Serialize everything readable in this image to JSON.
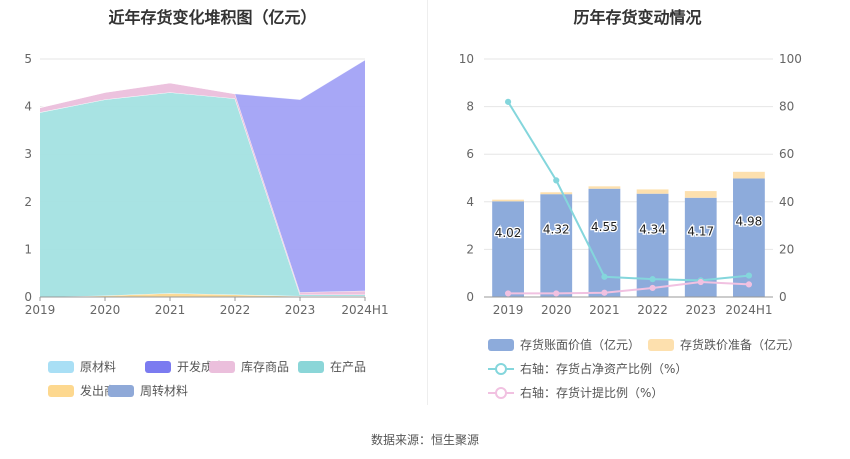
{
  "source": "数据来源：恒生聚源",
  "chart_data": [
    {
      "type": "area",
      "stacked": true,
      "title": "近年存货变化堆积图（亿元）",
      "categories": [
        "2019",
        "2020",
        "2021",
        "2022",
        "2023",
        "2024H1"
      ],
      "yticks": [
        "0",
        "1",
        "2",
        "3",
        "4",
        "5"
      ],
      "ylim": [
        0,
        5
      ],
      "grid": true,
      "legend_position": "bottom",
      "series": [
        {
          "name": "发出商品",
          "color": "#fdd88f",
          "values": [
            0.0,
            0.03,
            0.08,
            0.05,
            0.02,
            0.02
          ]
        },
        {
          "name": "周转材料",
          "color": "#8fa9d8",
          "values": [
            0.0,
            0.0,
            0.0,
            0.0,
            0.0,
            0.0
          ]
        },
        {
          "name": "在产品",
          "color": "#a3e1e2",
          "values": [
            3.88,
            4.12,
            4.22,
            4.12,
            0.03,
            0.03
          ]
        },
        {
          "name": "原材料",
          "color": "#a9dff5",
          "values": [
            0.0,
            0.0,
            0.0,
            0.0,
            0.0,
            0.0
          ]
        },
        {
          "name": "库存商品",
          "color": "#ebbfdc",
          "values": [
            0.1,
            0.15,
            0.2,
            0.1,
            0.05,
            0.08
          ]
        },
        {
          "name": "开发成本",
          "color": "#a2a2f5",
          "values": [
            0.0,
            0.0,
            0.0,
            0.0,
            4.05,
            4.85
          ]
        }
      ],
      "legend": [
        {
          "name": "原材料",
          "color": "#a9dff5"
        },
        {
          "name": "开发成本",
          "color": "#7b7bf0"
        },
        {
          "name": "库存商品",
          "color": "#ebbfdc"
        },
        {
          "name": "在产品",
          "color": "#8bd6d8"
        },
        {
          "name": "发出商品",
          "color": "#fdd88f"
        },
        {
          "name": "周转材料",
          "color": "#8fa9d8"
        }
      ]
    },
    {
      "type": "bar",
      "title": "历年存货变动情况",
      "categories": [
        "2019",
        "2020",
        "2021",
        "2022",
        "2023",
        "2024H1"
      ],
      "yticks_left": [
        "0",
        "2",
        "4",
        "6",
        "8",
        "10"
      ],
      "ylim_left": [
        0,
        10
      ],
      "yticks_right": [
        "0",
        "20",
        "40",
        "60",
        "80",
        "100"
      ],
      "ylim_right": [
        0,
        100
      ],
      "grid": true,
      "legend_position": "bottom",
      "series": [
        {
          "name": "存货账面价值（亿元）",
          "kind": "bar",
          "axis": "left",
          "color": "#8dabdb",
          "values": [
            4.02,
            4.32,
            4.55,
            4.34,
            4.17,
            4.98
          ],
          "labels": [
            "4.02",
            "4.32",
            "4.55",
            "4.34",
            "4.17",
            "4.98"
          ]
        },
        {
          "name": "存货跌价准备（亿元）",
          "kind": "bar",
          "axis": "left",
          "color": "#fde0ae",
          "values": [
            0.07,
            0.08,
            0.1,
            0.18,
            0.28,
            0.28
          ]
        },
        {
          "name": "右轴：存货占净资产比例（%）",
          "kind": "line",
          "axis": "right",
          "color": "#84d6dc",
          "values": [
            82,
            49,
            8.5,
            7.5,
            7.0,
            9.0
          ]
        },
        {
          "name": "右轴：存货计提比例（%）",
          "kind": "line",
          "axis": "right",
          "color": "#f1c1e1",
          "values": [
            1.5,
            1.5,
            1.8,
            3.8,
            6.3,
            5.3
          ]
        }
      ]
    }
  ]
}
